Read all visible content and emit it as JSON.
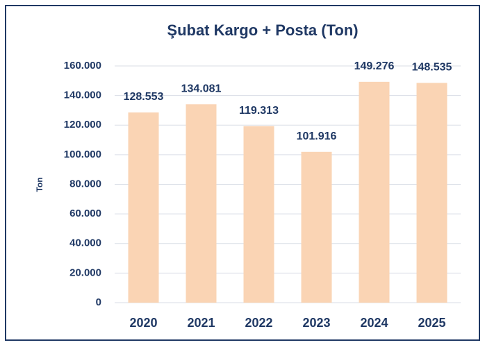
{
  "chart_data": {
    "type": "bar",
    "title": "Şubat Kargo + Posta (Ton)",
    "y_label": "Ton",
    "categories": [
      "2020",
      "2021",
      "2022",
      "2023",
      "2024",
      "2025"
    ],
    "values": [
      128553,
      134081,
      119313,
      101916,
      149276,
      148535
    ],
    "value_labels": [
      "128.553",
      "134.081",
      "119.313",
      "101.916",
      "149.276",
      "148.535"
    ],
    "color": "#fad4b4",
    "ylim": [
      0,
      160000
    ],
    "yticks": [
      0,
      {
        "value": 20000,
        "label": "20.000"
      },
      {
        "value": 40000,
        "label": "40.000"
      },
      {
        "value": 60000,
        "label": "60.000"
      },
      {
        "value": 80000,
        "label": "80.000"
      },
      {
        "value": 100000,
        "label": "100.000"
      },
      {
        "value": 120000,
        "label": "120.000"
      },
      {
        "value": 140000,
        "label": "140.000"
      },
      {
        "value": 160000,
        "label": "160.000"
      }
    ],
    "grid": true
  }
}
